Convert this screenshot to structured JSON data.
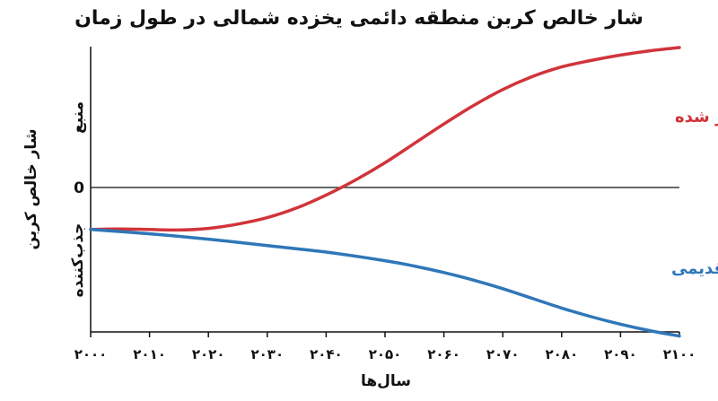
{
  "chart_data": {
    "type": "line",
    "title": "شار خالص کربن منطقه دائمی یخزده شمالی در طول زمان",
    "xlabel": "سال‌ها",
    "ylabel": "شار خالص کربن",
    "y_pos_label": "منبع",
    "y_neg_label": "جذب‌کننده",
    "y_zero_label": "0",
    "x_ticks": [
      "۲۰۰۰",
      "۲۰۱۰",
      "۲۰۲۰",
      "۲۰۳۰",
      "۲۰۴۰",
      "۲۰۵۰",
      "۲۰۶۰",
      "۲۰۷۰",
      "۲۰۸۰",
      "۲۰۹۰",
      "۲۱۰۰"
    ],
    "xlim": [
      2000,
      2100
    ],
    "ylim": [
      -1.5,
      1.5
    ],
    "grid": false,
    "series": [
      {
        "name": "مدل به‌روز شده",
        "color": "#d1343a",
        "x": [
          2000,
          2005,
          2010,
          2015,
          2020,
          2025,
          2030,
          2035,
          2040,
          2045,
          2050,
          2055,
          2060,
          2065,
          2070,
          2075,
          2080,
          2085,
          2090,
          2095,
          2100
        ],
        "y": [
          -0.39,
          -0.385,
          -0.39,
          -0.395,
          -0.38,
          -0.34,
          -0.28,
          -0.19,
          -0.07,
          0.07,
          0.23,
          0.41,
          0.59,
          0.76,
          0.91,
          1.03,
          1.12,
          1.18,
          1.23,
          1.27,
          1.3
        ]
      },
      {
        "name": "مدل قدیمی",
        "color": "#2f77b8",
        "x": [
          2000,
          2010,
          2020,
          2030,
          2040,
          2050,
          2055,
          2060,
          2065,
          2070,
          2075,
          2080,
          2085,
          2090,
          2095,
          2100
        ],
        "y": [
          -0.39,
          -0.43,
          -0.48,
          -0.54,
          -0.6,
          -0.68,
          -0.73,
          -0.79,
          -0.86,
          -0.94,
          -1.03,
          -1.12,
          -1.2,
          -1.27,
          -1.33,
          -1.38
        ]
      }
    ]
  }
}
